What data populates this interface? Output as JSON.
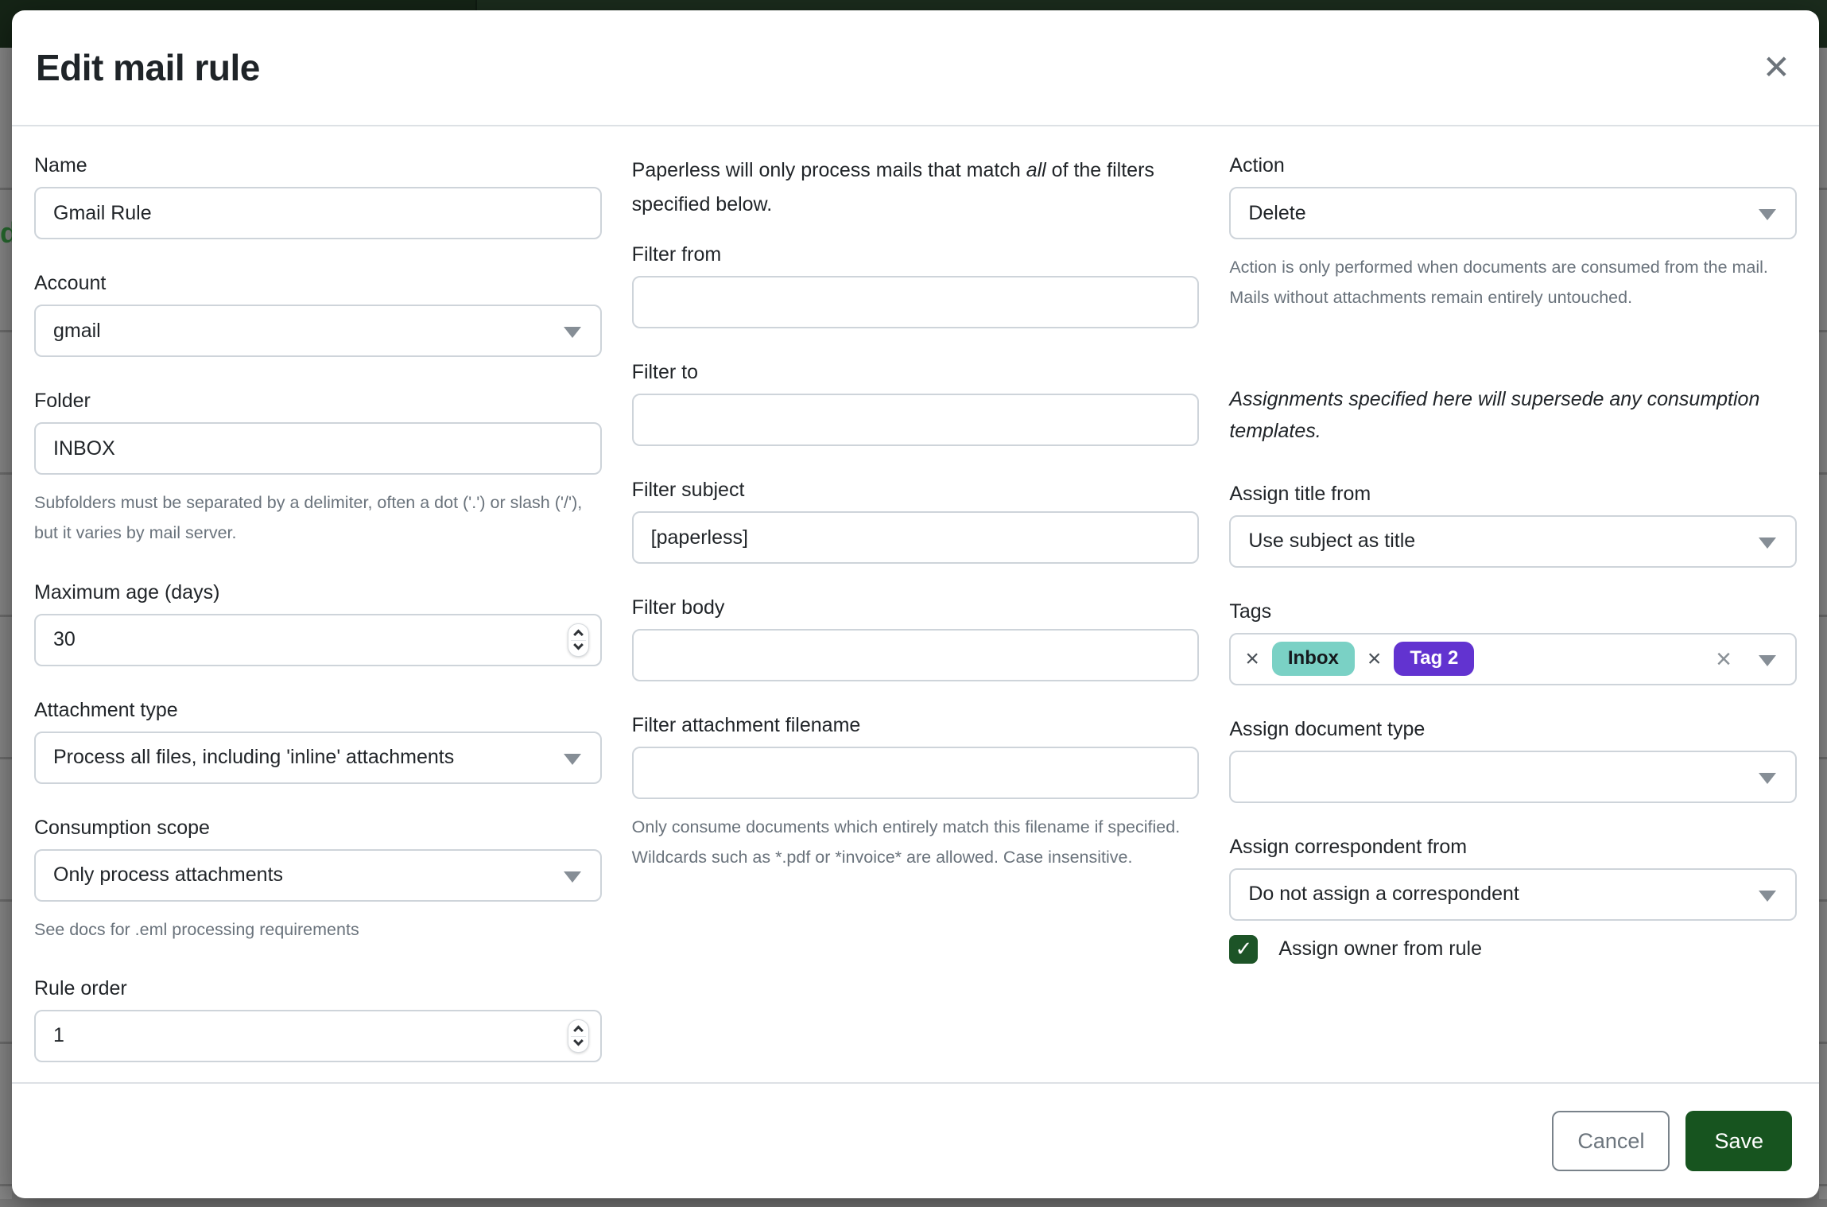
{
  "modal": {
    "title": "Edit mail rule"
  },
  "icons": {
    "close": "✕",
    "remove_tag": "×",
    "clear": "×",
    "check": "✓"
  },
  "form": {
    "left": {
      "name": {
        "label": "Name",
        "value": "Gmail Rule"
      },
      "account": {
        "label": "Account",
        "value": "gmail"
      },
      "folder": {
        "label": "Folder",
        "value": "INBOX",
        "help": "Subfolders must be separated by a delimiter, often a dot ('.') or slash ('/'), but it varies by mail server."
      },
      "maximum_age": {
        "label": "Maximum age (days)",
        "value": "30"
      },
      "attachment_type": {
        "label": "Attachment type",
        "value": "Process all files, including 'inline' attachments"
      },
      "consumption_scope": {
        "label": "Consumption scope",
        "value": "Only process attachments",
        "help": "See docs for .eml processing requirements"
      },
      "rule_order": {
        "label": "Rule order",
        "value": "1"
      }
    },
    "filters": {
      "intro_before": "Paperless will only process mails that match ",
      "intro_italic": "all",
      "intro_after": " of the filters specified below.",
      "from": {
        "label": "Filter from",
        "value": ""
      },
      "to": {
        "label": "Filter to",
        "value": ""
      },
      "subject": {
        "label": "Filter subject",
        "value": "[paperless]"
      },
      "body": {
        "label": "Filter body",
        "value": ""
      },
      "attachment_filename": {
        "label": "Filter attachment filename",
        "value": "",
        "help": "Only consume documents which entirely match this filename if specified. Wildcards such as *.pdf or *invoice* are allowed. Case insensitive."
      }
    },
    "action_column": {
      "action": {
        "label": "Action",
        "value": "Delete",
        "help": "Action is only performed when documents are consumed from the mail. Mails without attachments remain entirely untouched."
      },
      "assignments_note": "Assignments specified here will supersede any consumption templates.",
      "assign_title_from": {
        "label": "Assign title from",
        "value": "Use subject as title"
      },
      "tags": {
        "label": "Tags",
        "selected": [
          {
            "name": "Inbox",
            "bg": "#7ad1c5",
            "fg": "#15191d"
          },
          {
            "name": "Tag 2",
            "bg": "#6233d0",
            "fg": "#ffffff"
          }
        ]
      },
      "assign_document_type": {
        "label": "Assign document type",
        "value": ""
      },
      "assign_correspondent_from": {
        "label": "Assign correspondent from",
        "value": "Do not assign a correspondent"
      },
      "assign_owner_from_rule": {
        "label": "Assign owner from rule",
        "checked": true
      }
    }
  },
  "footer": {
    "cancel": "Cancel",
    "save": "Save"
  },
  "background": {
    "partial_text": "d"
  },
  "colors": {
    "primary_green": "#17541f",
    "checkbox_green": "#1d5427",
    "navbar_left": "#152416",
    "navbar_right": "#1b2c1d",
    "tag_inbox_bg": "#7ad1c5",
    "tag_2_bg": "#6233d0"
  }
}
